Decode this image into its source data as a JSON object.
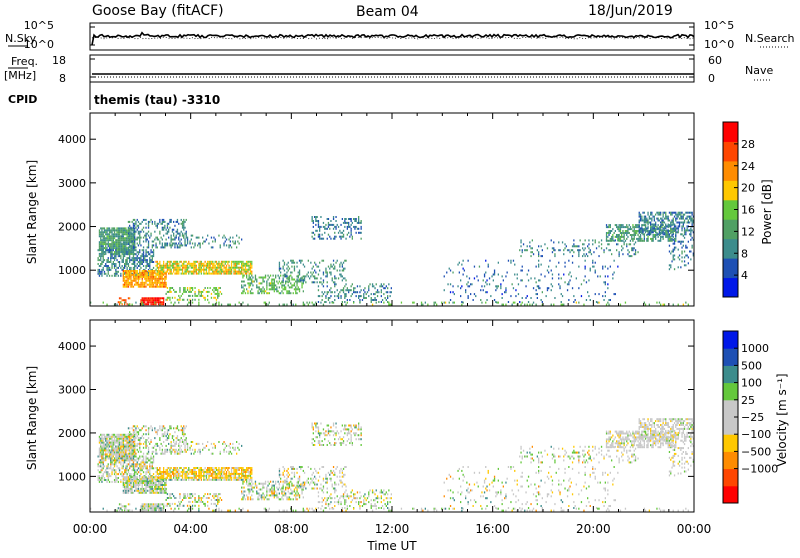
{
  "header": {
    "station": "Goose Bay (fitACF)",
    "beam": "Beam 04",
    "date": "18/Jun/2019"
  },
  "noise_panel": {
    "left_label": "N.Sky",
    "right_label": "N.Search",
    "left_ticks": [
      "10^5",
      "10^0"
    ],
    "right_ticks": [
      "10^5",
      "10^0"
    ]
  },
  "freq_panel": {
    "left_label": "Freq.",
    "left_units": "[MHz]",
    "right_label": "Nave",
    "left_ticks": [
      "18",
      "8"
    ],
    "right_ticks": [
      "60",
      "0"
    ]
  },
  "cpid": {
    "label": "CPID",
    "value": "themis (tau) -3310"
  },
  "colors": {
    "power": [
      "#0018e8",
      "#1e50b4",
      "#3c8c8c",
      "#50a064",
      "#64c83c",
      "#ffc800",
      "#ff8c00",
      "#ff4600",
      "#ff0000"
    ],
    "velocity": [
      "#ff0000",
      "#ff4600",
      "#ff8c00",
      "#ffc800",
      "#c8c8c8",
      "#c8c8c8",
      "#64c83c",
      "#3c8c8c",
      "#1e50b4",
      "#0018e8"
    ]
  },
  "chart_data": [
    {
      "type": "heatmap",
      "name": "power",
      "ylabel": "Slant Range [km]",
      "ylim": [
        180,
        4600
      ],
      "yticks": [
        "4000",
        "3000",
        "2000",
        "1000"
      ],
      "xlim_hours": [
        0,
        24
      ],
      "colorbar": {
        "label": "Power [dB]",
        "ticks": [
          "28",
          "24",
          "20",
          "16",
          "12",
          "8",
          "4"
        ],
        "range": [
          0,
          32
        ]
      },
      "regions": [
        {
          "t0": 0.35,
          "t1": 1.8,
          "r0": 1350,
          "r1": 1950,
          "mean": 11,
          "density": 0.85
        },
        {
          "t0": 0.3,
          "t1": 2.5,
          "r0": 850,
          "r1": 1450,
          "mean": 9,
          "density": 0.55
        },
        {
          "t0": 1.3,
          "t1": 3.0,
          "r0": 600,
          "r1": 1000,
          "mean": 22,
          "density": 0.85
        },
        {
          "t0": 2.6,
          "t1": 6.4,
          "r0": 900,
          "r1": 1200,
          "mean": 19,
          "density": 0.8
        },
        {
          "t0": 2.0,
          "t1": 2.9,
          "r0": 200,
          "r1": 380,
          "mean": 30,
          "density": 0.95
        },
        {
          "t0": 1.1,
          "t1": 1.6,
          "r0": 200,
          "r1": 380,
          "mean": 26,
          "density": 0.6
        },
        {
          "t0": 1.5,
          "t1": 3.8,
          "r0": 1500,
          "r1": 2150,
          "mean": 9,
          "density": 0.3
        },
        {
          "t0": 3.2,
          "t1": 6.0,
          "r0": 1500,
          "r1": 1800,
          "mean": 9,
          "density": 0.25
        },
        {
          "t0": 3.0,
          "t1": 5.2,
          "r0": 300,
          "r1": 600,
          "mean": 16,
          "density": 0.35
        },
        {
          "t0": 6.0,
          "t1": 8.5,
          "r0": 450,
          "r1": 900,
          "mean": 14,
          "density": 0.4
        },
        {
          "t0": 7.5,
          "t1": 10.2,
          "r0": 700,
          "r1": 1200,
          "mean": 10,
          "density": 0.25
        },
        {
          "t0": 8.8,
          "t1": 10.8,
          "r0": 1700,
          "r1": 2200,
          "mean": 8,
          "density": 0.3
        },
        {
          "t0": 9.0,
          "t1": 12.0,
          "r0": 250,
          "r1": 700,
          "mean": 9,
          "density": 0.22
        },
        {
          "t0": 14.0,
          "t1": 21.0,
          "r0": 250,
          "r1": 1200,
          "mean": 7,
          "density": 0.08
        },
        {
          "t0": 17.0,
          "t1": 21.8,
          "r0": 1300,
          "r1": 1700,
          "mean": 9,
          "density": 0.15
        },
        {
          "t0": 20.5,
          "t1": 23.3,
          "r0": 1650,
          "r1": 2050,
          "mean": 11,
          "density": 0.55
        },
        {
          "t0": 21.8,
          "t1": 24.0,
          "r0": 1800,
          "r1": 2300,
          "mean": 8,
          "density": 0.55
        },
        {
          "t0": 23.0,
          "t1": 24.0,
          "r0": 1000,
          "r1": 1800,
          "mean": 8,
          "density": 0.2
        },
        {
          "t0": 0.0,
          "t1": 24.0,
          "r0": 190,
          "r1": 260,
          "mean": 14,
          "density": 0.15
        }
      ]
    },
    {
      "type": "heatmap",
      "name": "velocity",
      "ylabel": "Slant Range [km]",
      "ylim": [
        180,
        4600
      ],
      "yticks": [
        "4000",
        "3000",
        "2000",
        "1000"
      ],
      "xlabel": "Time UT",
      "xticks": [
        "00:00",
        "04:00",
        "08:00",
        "12:00",
        "16:00",
        "20:00",
        "00:00"
      ],
      "xlim_hours": [
        0,
        24
      ],
      "colorbar": {
        "label": "Velocity [m s⁻¹]",
        "ticks": [
          "1000",
          "500",
          "100",
          "25",
          "−25",
          "−100",
          "−500",
          "−1000"
        ]
      }
    }
  ]
}
